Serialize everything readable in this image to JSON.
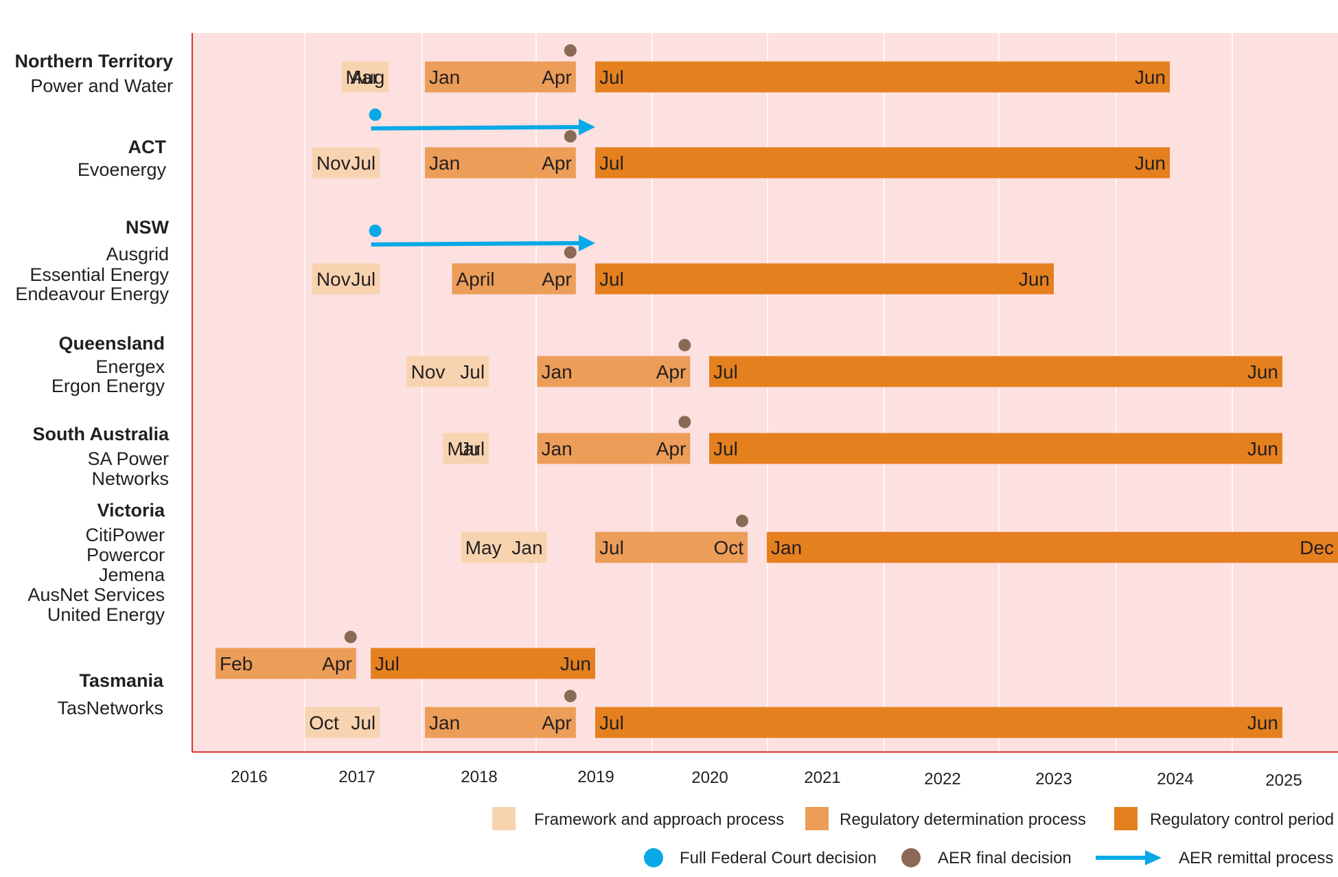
{
  "chart_data": {
    "type": "gantt",
    "title": "",
    "x_axis": {
      "tick_labels": [
        "2016",
        "2017",
        "2018",
        "2019",
        "2020",
        "2021",
        "2022",
        "2023",
        "2024",
        "2025"
      ]
    },
    "grid": true,
    "legend_position": "bottom-right",
    "colors": {
      "background": "#fde0e0",
      "axis": "#e0322f",
      "framework": "#f8d3b0",
      "determination": "#ec9d58",
      "control": "#e5801f",
      "court": "#08a9e6",
      "aer": "#8a6a55",
      "remittal": "#08a9e6"
    },
    "legend": [
      {
        "kind": "framework",
        "label": "Framework and approach process"
      },
      {
        "kind": "determination",
        "label": "Regulatory determination process"
      },
      {
        "kind": "control",
        "label": "Regulatory control period"
      },
      {
        "kind": "court",
        "label": "Full Federal Court decision"
      },
      {
        "kind": "aer",
        "label": "AER final decision"
      },
      {
        "kind": "remittal",
        "label": "AER remittal process"
      }
    ],
    "groups": [
      {
        "title": "Northern Territory",
        "members": [
          "Power and Water"
        ]
      },
      {
        "title": "ACT",
        "members": [
          "Evoenergy"
        ]
      },
      {
        "title": "NSW",
        "members": [
          "Ausgrid",
          "Essential Energy",
          "Endeavour Energy"
        ]
      },
      {
        "title": "Queensland",
        "members": [
          "Energex",
          "Ergon Energy"
        ]
      },
      {
        "title": "South Australia",
        "members": [
          "SA Power",
          "Networks"
        ]
      },
      {
        "title": "Victoria",
        "members": [
          "CitiPower",
          "Powercor",
          "Jemena",
          "AusNet Services",
          "United Energy"
        ]
      },
      {
        "title": "Tasmania",
        "members": [
          "TasNetworks"
        ]
      }
    ],
    "rows": [
      {
        "group": "Northern Territory",
        "bars": [
          {
            "kind": "framework",
            "start": "2017-03",
            "end": "2017-08",
            "labels": [
              "Mar",
              "Aug"
            ]
          },
          {
            "kind": "determination",
            "start": "2018-01",
            "end": "2019-04",
            "labels": [
              "Jan",
              "Apr"
            ]
          },
          {
            "kind": "control",
            "start": "2019-07",
            "end": "2024-06",
            "labels": [
              "Jul",
              "Jun"
            ]
          }
        ],
        "aer_decision": "2019-04"
      },
      {
        "group": "ACT",
        "bars": [
          {
            "kind": "framework",
            "start": "2016-11",
            "end": "2017-07",
            "labels": [
              "Nov",
              "Jul"
            ]
          },
          {
            "kind": "determination",
            "start": "2018-01",
            "end": "2019-04",
            "labels": [
              "Jan",
              "Apr"
            ]
          },
          {
            "kind": "control",
            "start": "2019-07",
            "end": "2024-06",
            "labels": [
              "Jul",
              "Jun"
            ]
          }
        ],
        "aer_decision": "2019-04",
        "remittal": {
          "court_decision": "2017-07",
          "end": "2019-07"
        }
      },
      {
        "group": "NSW",
        "bars": [
          {
            "kind": "framework",
            "start": "2016-11",
            "end": "2017-07",
            "labels": [
              "Nov",
              "Jul"
            ]
          },
          {
            "kind": "determination",
            "start": "2018-04",
            "end": "2019-04",
            "labels": [
              "April",
              "Apr"
            ]
          },
          {
            "kind": "control",
            "start": "2019-07",
            "end": "2023-06",
            "labels": [
              "Jul",
              "Jun"
            ]
          }
        ],
        "aer_decision": "2019-04",
        "remittal": {
          "court_decision": "2017-07",
          "end": "2019-07"
        }
      },
      {
        "group": "Queensland",
        "bars": [
          {
            "kind": "framework",
            "start": "2017-11",
            "end": "2018-07",
            "labels": [
              "Nov",
              "Jul"
            ]
          },
          {
            "kind": "determination",
            "start": "2019-01",
            "end": "2020-04",
            "labels": [
              "Jan",
              "Apr"
            ]
          },
          {
            "kind": "control",
            "start": "2020-07",
            "end": "2025-06",
            "labels": [
              "Jul",
              "Jun"
            ]
          }
        ],
        "aer_decision": "2020-04"
      },
      {
        "group": "South Australia",
        "bars": [
          {
            "kind": "framework",
            "start": "2018-03",
            "end": "2018-07",
            "labels": [
              "Mar",
              "Jul"
            ]
          },
          {
            "kind": "determination",
            "start": "2019-01",
            "end": "2020-04",
            "labels": [
              "Jan",
              "Apr"
            ]
          },
          {
            "kind": "control",
            "start": "2020-07",
            "end": "2025-06",
            "labels": [
              "Jul",
              "Jun"
            ]
          }
        ],
        "aer_decision": "2020-04"
      },
      {
        "group": "Victoria",
        "bars": [
          {
            "kind": "framework",
            "start": "2018-05",
            "end": "2019-01",
            "labels": [
              "May",
              "Jan"
            ]
          },
          {
            "kind": "determination",
            "start": "2019-07",
            "end": "2020-10",
            "labels": [
              "Jul",
              "Oct"
            ]
          },
          {
            "kind": "control",
            "start": "2021-01",
            "end": "2025-12",
            "labels": [
              "Jan",
              "Dec"
            ]
          }
        ],
        "aer_decision": "2020-10"
      },
      {
        "group": "Tasmania",
        "bars": [
          {
            "kind": "determination",
            "start": "2016-02",
            "end": "2017-04",
            "labels": [
              "Feb",
              "Apr"
            ]
          },
          {
            "kind": "control",
            "start": "2017-07",
            "end": "2019-06",
            "labels": [
              "Jul",
              "Jun"
            ]
          }
        ],
        "aer_decision": "2017-04"
      },
      {
        "group": "Tasmania",
        "bars": [
          {
            "kind": "framework",
            "start": "2016-10",
            "end": "2017-07",
            "labels": [
              "Oct",
              "Jul"
            ]
          },
          {
            "kind": "determination",
            "start": "2018-01",
            "end": "2019-04",
            "labels": [
              "Jan",
              "Apr"
            ]
          },
          {
            "kind": "control",
            "start": "2019-07",
            "end": "2025-06",
            "labels": [
              "Jul",
              "Jun"
            ]
          }
        ],
        "aer_decision": "2019-04"
      }
    ]
  }
}
